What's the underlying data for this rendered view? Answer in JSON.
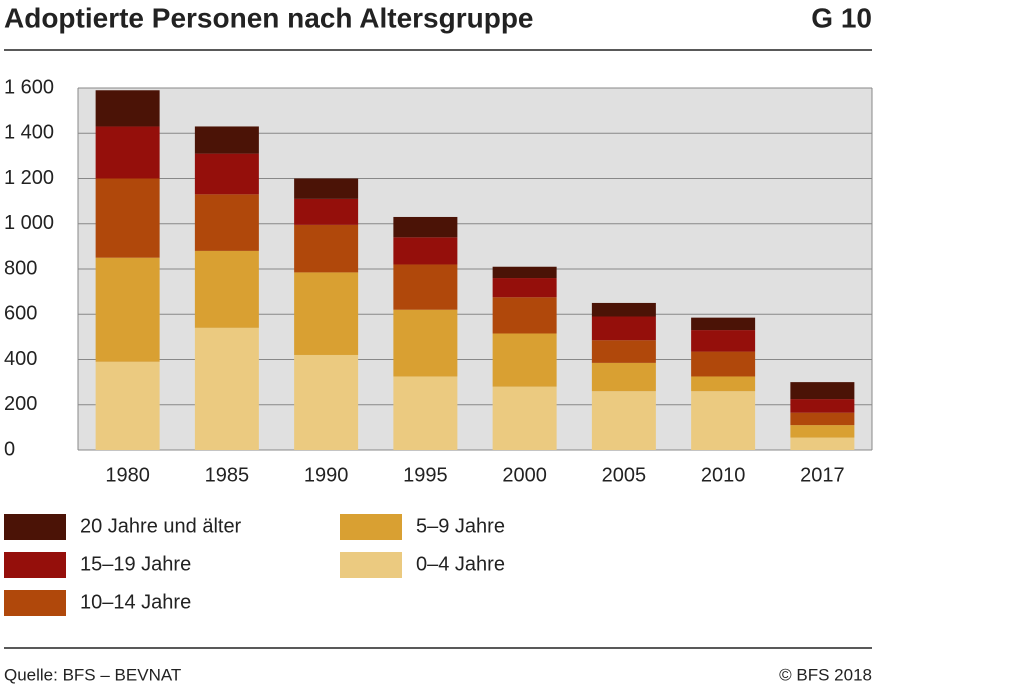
{
  "chart_data": {
    "type": "stacked_bar",
    "title": "Adoptierte Personen nach Altersgruppe",
    "chart_id": "G 10",
    "source": "Quelle: BFS – BEVNAT",
    "copyright": "© BFS 2018",
    "categories": [
      "1980",
      "1985",
      "1990",
      "1995",
      "2000",
      "2005",
      "2010",
      "2017"
    ],
    "series": [
      {
        "name": "0–4 Jahre",
        "color": "#ebca80",
        "values": [
          390,
          540,
          420,
          325,
          280,
          260,
          260,
          55
        ]
      },
      {
        "name": "5–9 Jahre",
        "color": "#d9a032",
        "values": [
          460,
          340,
          365,
          295,
          235,
          125,
          65,
          55
        ]
      },
      {
        "name": "10–14 Jahre",
        "color": "#b0480b",
        "values": [
          350,
          250,
          210,
          200,
          160,
          100,
          110,
          55
        ]
      },
      {
        "name": "15–19 Jahre",
        "color": "#950f0b",
        "values": [
          230,
          180,
          115,
          120,
          85,
          105,
          95,
          60
        ]
      },
      {
        "name": "20 Jahre und älter",
        "color": "#4b1306",
        "values": [
          160,
          120,
          90,
          90,
          50,
          60,
          55,
          75
        ]
      }
    ],
    "ylim": [
      0,
      1600
    ],
    "yticks": [
      0,
      200,
      400,
      600,
      800,
      {
        "value": 1000,
        "label": "1 000"
      },
      {
        "value": 1200,
        "label": "1 200"
      },
      {
        "value": 1400,
        "label": "1 400"
      },
      {
        "value": 1600,
        "label": "1 600"
      }
    ],
    "grid": true
  }
}
